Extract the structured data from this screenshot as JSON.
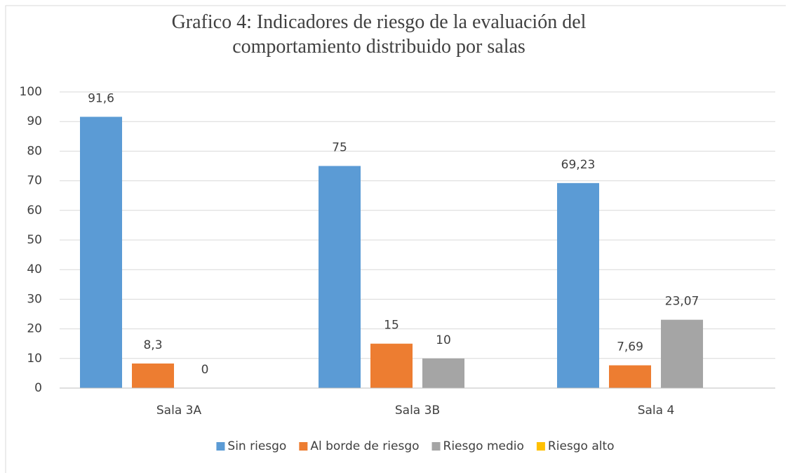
{
  "chart_data": {
    "type": "bar",
    "title": "Grafico 4: Indicadores de riesgo de la evaluación del comportamiento distribuido por salas",
    "categories": [
      "Sala 3A",
      "Sala 3B",
      "Sala 4"
    ],
    "series": [
      {
        "name": "Sin riesgo",
        "color": "#5b9bd5",
        "values": [
          91.6,
          75,
          69.23
        ],
        "value_labels": [
          "91,6",
          "75",
          "69,23"
        ]
      },
      {
        "name": "Al borde de riesgo",
        "color": "#ed7d31",
        "values": [
          8.3,
          15,
          7.69
        ],
        "value_labels": [
          "8,3",
          "15",
          "7,69"
        ]
      },
      {
        "name": "Riesgo medio",
        "color": "#a5a5a5",
        "values": [
          0,
          10,
          23.07
        ],
        "value_labels": [
          "0",
          "10",
          "23,07"
        ]
      },
      {
        "name": "Riesgo alto",
        "color": "#ffc000",
        "values": [
          null,
          null,
          null
        ]
      }
    ],
    "ylim": [
      0,
      100
    ],
    "yticks": [
      0,
      10,
      20,
      30,
      40,
      50,
      60,
      70,
      80,
      90,
      100
    ],
    "grid": true,
    "legend": "bottom"
  }
}
